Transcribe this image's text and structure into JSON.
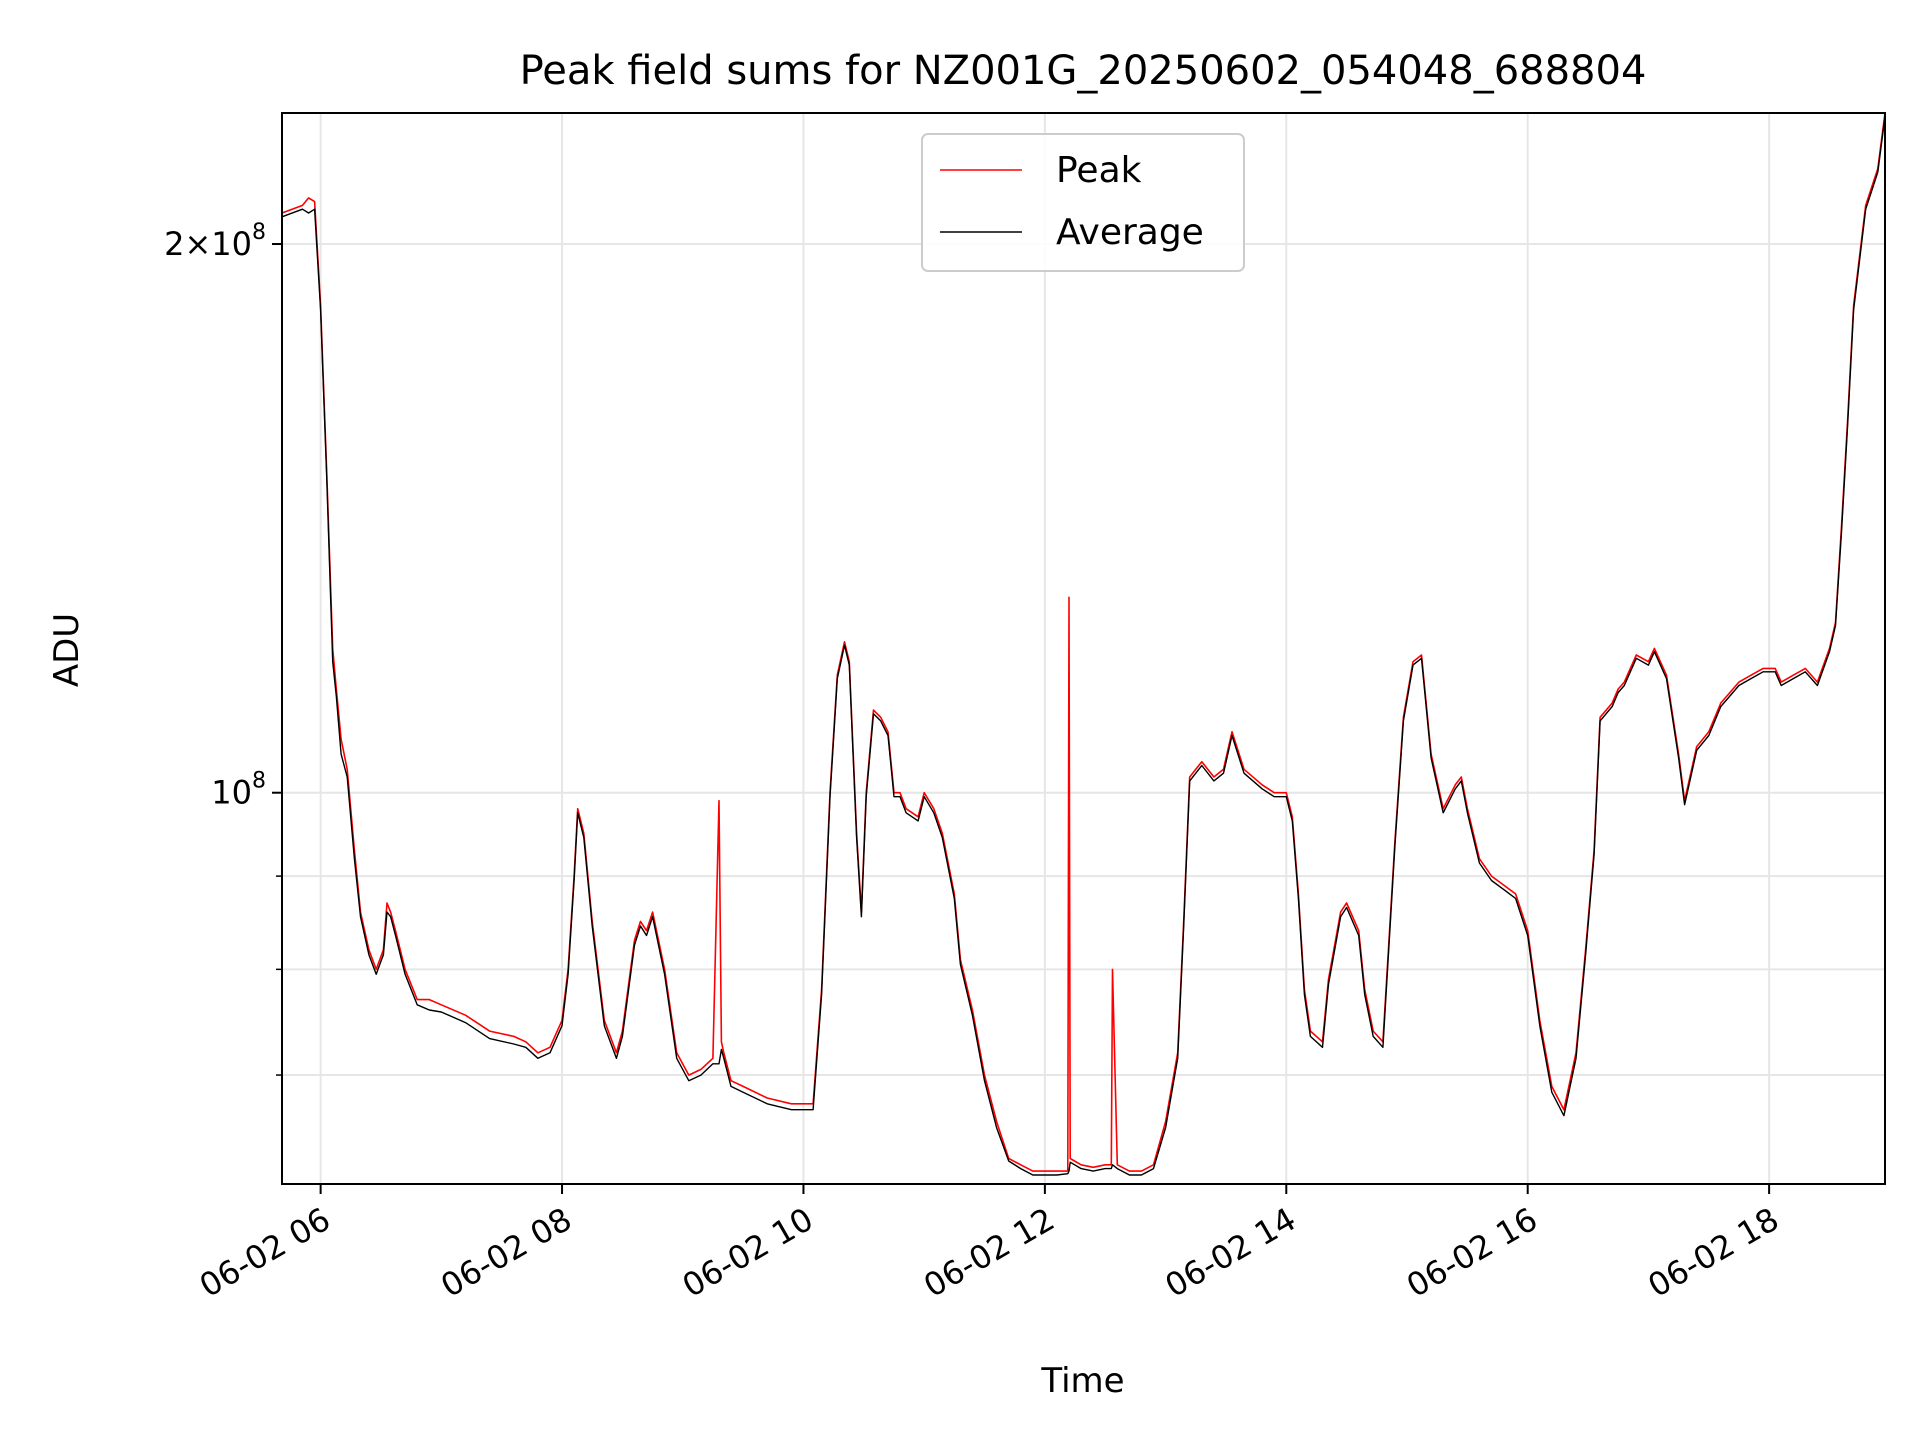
{
  "chart_data": {
    "type": "line",
    "title": "Peak field sums for NZ001G_20250602_054048_688804",
    "xlabel": "Time",
    "ylabel": "ADU",
    "yscale": "log",
    "xlim": [
      5.68,
      18.96
    ],
    "ylim": [
      61000000,
      236000000
    ],
    "grid": true,
    "legend_position": "top-center",
    "x_ticks": [
      {
        "value": 6,
        "label": "06-02 06"
      },
      {
        "value": 8,
        "label": "06-02 08"
      },
      {
        "value": 10,
        "label": "06-02 10"
      },
      {
        "value": 12,
        "label": "06-02 12"
      },
      {
        "value": 14,
        "label": "06-02 14"
      },
      {
        "value": 16,
        "label": "06-02 16"
      },
      {
        "value": 18,
        "label": "06-02 18"
      }
    ],
    "y_major_ticks": [
      {
        "value": 100000000,
        "label": "10^8",
        "mantissa": "",
        "base": "10",
        "exp": "8"
      },
      {
        "value": 200000000,
        "label": "2×10^8",
        "mantissa": "2×",
        "base": "10",
        "exp": "8"
      }
    ],
    "y_minor_ticks": [
      70000000,
      80000000,
      90000000
    ],
    "x_unit": "hour of 2025-06-02",
    "series": [
      {
        "name": "Peak",
        "color": "#ff0000",
        "x": [
          5.68,
          5.85,
          5.9,
          5.95,
          6.0,
          6.05,
          6.1,
          6.13,
          6.17,
          6.22,
          6.28,
          6.33,
          6.4,
          6.46,
          6.52,
          6.55,
          6.58,
          6.62,
          6.7,
          6.8,
          6.9,
          7.0,
          7.2,
          7.4,
          7.6,
          7.7,
          7.8,
          7.9,
          8.0,
          8.05,
          8.1,
          8.13,
          8.18,
          8.25,
          8.35,
          8.45,
          8.5,
          8.6,
          8.65,
          8.7,
          8.75,
          8.85,
          8.95,
          9.05,
          9.15,
          9.25,
          9.3,
          9.32,
          9.34,
          9.4,
          9.5,
          9.7,
          9.9,
          10.08,
          10.15,
          10.22,
          10.28,
          10.34,
          10.38,
          10.44,
          10.48,
          10.52,
          10.58,
          10.64,
          10.7,
          10.75,
          10.8,
          10.85,
          10.95,
          11.0,
          11.08,
          11.15,
          11.25,
          11.3,
          11.4,
          11.5,
          11.6,
          11.7,
          11.8,
          11.9,
          12.0,
          12.1,
          12.19,
          12.2,
          12.21,
          12.3,
          12.4,
          12.5,
          12.55,
          12.56,
          12.6,
          12.7,
          12.8,
          12.9,
          13.0,
          13.1,
          13.15,
          13.2,
          13.25,
          13.3,
          13.4,
          13.48,
          13.55,
          13.65,
          13.8,
          13.9,
          14.0,
          14.05,
          14.1,
          14.15,
          14.2,
          14.3,
          14.35,
          14.45,
          14.5,
          14.6,
          14.65,
          14.72,
          14.8,
          14.9,
          14.97,
          15.05,
          15.12,
          15.2,
          15.3,
          15.4,
          15.45,
          15.5,
          15.6,
          15.7,
          15.8,
          15.9,
          16.0,
          16.1,
          16.2,
          16.3,
          16.4,
          16.48,
          16.55,
          16.6,
          16.7,
          16.75,
          16.8,
          16.9,
          17.0,
          17.05,
          17.15,
          17.25,
          17.3,
          17.4,
          17.5,
          17.6,
          17.65,
          17.75,
          17.85,
          17.95,
          18.05,
          18.1,
          18.2,
          18.3,
          18.4,
          18.5,
          18.55,
          18.6,
          18.65,
          18.7,
          18.8,
          18.9,
          18.96
        ],
        "y": [
          208000000,
          210000000,
          212000000,
          211000000,
          185000000,
          150000000,
          120000000,
          114000000,
          107000000,
          103000000,
          93000000,
          86000000,
          82000000,
          80000000,
          82000000,
          87000000,
          86000000,
          84000000,
          80000000,
          77000000,
          77000000,
          76500000,
          75500000,
          74000000,
          73500000,
          73000000,
          72000000,
          72500000,
          75000000,
          80000000,
          90000000,
          98000000,
          95000000,
          85000000,
          75000000,
          72000000,
          74000000,
          83000000,
          85000000,
          84000000,
          86000000,
          80000000,
          72000000,
          70000000,
          70500000,
          71500000,
          99000000,
          73000000,
          72000000,
          69500000,
          69000000,
          68000000,
          67500000,
          67500000,
          78000000,
          100000000,
          116000000,
          121000000,
          118000000,
          95000000,
          86000000,
          100000000,
          111000000,
          110000000,
          108000000,
          100000000,
          100000000,
          98000000,
          97000000,
          100000000,
          98000000,
          95000000,
          88000000,
          81000000,
          76000000,
          70000000,
          66000000,
          63000000,
          62500000,
          62000000,
          62000000,
          62000000,
          62000000,
          128000000,
          63000000,
          62500000,
          62300000,
          62500000,
          62500000,
          80000000,
          62500000,
          62000000,
          62000000,
          62500000,
          66000000,
          72000000,
          85000000,
          102000000,
          103000000,
          104000000,
          102000000,
          103000000,
          108000000,
          103000000,
          101000000,
          100000000,
          100000000,
          97000000,
          88000000,
          78000000,
          74000000,
          73000000,
          79000000,
          86000000,
          87000000,
          84000000,
          78000000,
          74000000,
          73000000,
          94000000,
          110000000,
          118000000,
          119000000,
          105000000,
          98000000,
          101000000,
          102000000,
          98000000,
          92000000,
          90000000,
          89000000,
          88000000,
          84000000,
          75000000,
          69000000,
          67000000,
          72000000,
          82000000,
          93000000,
          110000000,
          112000000,
          114000000,
          115000000,
          119000000,
          118000000,
          120000000,
          116000000,
          105000000,
          99000000,
          106000000,
          108000000,
          112000000,
          113000000,
          115000000,
          116000000,
          117000000,
          117000000,
          115000000,
          116000000,
          117000000,
          115000000,
          120000000,
          124000000,
          140000000,
          160000000,
          185000000,
          210000000,
          220000000,
          236000000
        ]
      },
      {
        "name": "Average",
        "color": "#000000",
        "x": [
          5.68,
          5.85,
          5.9,
          5.95,
          6.0,
          6.05,
          6.1,
          6.13,
          6.17,
          6.22,
          6.28,
          6.33,
          6.4,
          6.46,
          6.52,
          6.55,
          6.58,
          6.62,
          6.7,
          6.8,
          6.9,
          7.0,
          7.2,
          7.4,
          7.6,
          7.7,
          7.8,
          7.9,
          8.0,
          8.05,
          8.1,
          8.13,
          8.18,
          8.25,
          8.35,
          8.45,
          8.5,
          8.6,
          8.65,
          8.7,
          8.75,
          8.85,
          8.95,
          9.05,
          9.15,
          9.25,
          9.3,
          9.32,
          9.34,
          9.4,
          9.5,
          9.7,
          9.9,
          10.08,
          10.15,
          10.22,
          10.28,
          10.34,
          10.38,
          10.44,
          10.48,
          10.52,
          10.58,
          10.64,
          10.7,
          10.75,
          10.8,
          10.85,
          10.95,
          11.0,
          11.08,
          11.15,
          11.25,
          11.3,
          11.4,
          11.5,
          11.6,
          11.7,
          11.8,
          11.9,
          12.0,
          12.1,
          12.19,
          12.2,
          12.21,
          12.3,
          12.4,
          12.5,
          12.55,
          12.56,
          12.6,
          12.7,
          12.8,
          12.9,
          13.0,
          13.1,
          13.15,
          13.2,
          13.25,
          13.3,
          13.4,
          13.48,
          13.55,
          13.65,
          13.8,
          13.9,
          14.0,
          14.05,
          14.1,
          14.15,
          14.2,
          14.3,
          14.35,
          14.45,
          14.5,
          14.6,
          14.65,
          14.72,
          14.8,
          14.9,
          14.97,
          15.05,
          15.12,
          15.2,
          15.3,
          15.4,
          15.45,
          15.5,
          15.6,
          15.7,
          15.8,
          15.9,
          16.0,
          16.1,
          16.2,
          16.3,
          16.4,
          16.48,
          16.55,
          16.6,
          16.7,
          16.75,
          16.8,
          16.9,
          17.0,
          17.05,
          17.15,
          17.25,
          17.3,
          17.4,
          17.5,
          17.6,
          17.65,
          17.75,
          17.85,
          17.95,
          18.05,
          18.1,
          18.2,
          18.3,
          18.4,
          18.5,
          18.55,
          18.6,
          18.65,
          18.7,
          18.8,
          18.9,
          18.96
        ],
        "y": [
          207000000,
          209000000,
          208000000,
          209000000,
          184000000,
          149000000,
          118000000,
          113000000,
          105000000,
          102000000,
          92000000,
          85500000,
          81500000,
          79500000,
          81500000,
          86000000,
          85500000,
          83500000,
          79500000,
          76500000,
          76000000,
          75800000,
          74800000,
          73300000,
          72800000,
          72500000,
          71500000,
          72000000,
          74500000,
          79500000,
          89500000,
          97500000,
          94500000,
          84500000,
          74500000,
          71500000,
          73500000,
          82500000,
          84500000,
          83500000,
          85500000,
          79500000,
          71500000,
          69500000,
          70000000,
          71000000,
          71000000,
          72300000,
          71500000,
          69000000,
          68500000,
          67500000,
          67000000,
          67000000,
          77500000,
          99500000,
          115500000,
          120500000,
          117500000,
          94500000,
          85500000,
          99500000,
          110500000,
          109500000,
          107500000,
          99500000,
          99500000,
          97500000,
          96500000,
          99500000,
          97500000,
          94500000,
          87500000,
          80500000,
          75500000,
          69500000,
          65500000,
          62800000,
          62200000,
          61700000,
          61700000,
          61700000,
          61800000,
          62000000,
          62700000,
          62200000,
          62000000,
          62200000,
          62200000,
          62500000,
          62200000,
          61700000,
          61700000,
          62200000,
          65500000,
          71500000,
          84500000,
          101500000,
          102500000,
          103500000,
          101500000,
          102500000,
          107500000,
          102500000,
          100500000,
          99500000,
          99500000,
          96500000,
          87500000,
          77500000,
          73500000,
          72500000,
          78500000,
          85500000,
          86500000,
          83500000,
          77500000,
          73500000,
          72500000,
          93500000,
          109500000,
          117500000,
          118500000,
          104500000,
          97500000,
          100500000,
          101500000,
          97500000,
          91500000,
          89500000,
          88500000,
          87500000,
          83500000,
          74500000,
          68500000,
          66500000,
          71500000,
          81500000,
          92500000,
          109500000,
          111500000,
          113500000,
          114500000,
          118500000,
          117500000,
          119500000,
          115500000,
          104500000,
          98500000,
          105500000,
          107500000,
          111500000,
          112500000,
          114500000,
          115500000,
          116500000,
          116500000,
          114500000,
          115500000,
          116500000,
          114500000,
          119500000,
          123500000,
          139000000,
          159000000,
          184000000,
          209000000,
          219000000,
          235000000
        ]
      }
    ]
  }
}
